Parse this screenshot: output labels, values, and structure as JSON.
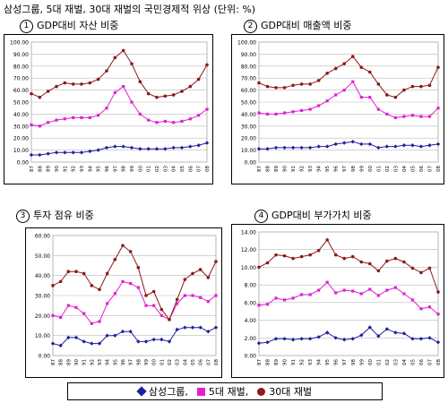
{
  "title": "삼성그룹, 5대 재벌, 30대 재벌의 국민경제적 위상 (단위: %)",
  "legend": {
    "items": [
      {
        "label": "삼성그룹,",
        "color": "#1f1f9e",
        "icon": "diamond-marker"
      },
      {
        "label": "5대 재벌,",
        "color": "#e020d0",
        "icon": "square-marker"
      },
      {
        "label": "30대 재벌",
        "color": "#8b1a1a",
        "icon": "circle-marker"
      }
    ]
  },
  "colors": {
    "samsung": "#1f1f9e",
    "top5": "#e020d0",
    "top30": "#8b1a1a",
    "grid": "#bbbbbb",
    "plot_bg": "#ffffff"
  },
  "chart_data": [
    {
      "type": "line",
      "title": "GDP대비 자산 비중",
      "number": "1",
      "x": [
        "87",
        "88",
        "89",
        "90",
        "91",
        "92",
        "93",
        "94",
        "95",
        "96",
        "97",
        "98",
        "99",
        "00",
        "01",
        "02",
        "03",
        "04",
        "05",
        "06",
        "07",
        "08"
      ],
      "yticks": [
        "0.00",
        "10.00",
        "20.00",
        "30.00",
        "40.00",
        "50.00",
        "60.00",
        "70.00",
        "80.00",
        "90.00",
        "100.00"
      ],
      "ylim": [
        0,
        100
      ],
      "series": [
        {
          "name": "삼성그룹",
          "values": [
            6,
            6,
            7,
            8,
            8,
            8,
            8,
            9,
            10,
            12,
            13,
            13,
            12,
            11,
            11,
            11,
            11,
            12,
            12,
            13,
            14,
            16
          ]
        },
        {
          "name": "5대 재벌",
          "values": [
            31,
            30,
            33,
            35,
            36,
            37,
            37,
            37,
            39,
            45,
            58,
            63,
            50,
            40,
            35,
            33,
            34,
            33,
            34,
            36,
            39,
            44
          ]
        },
        {
          "name": "30대 재벌",
          "values": [
            57,
            54,
            59,
            63,
            66,
            65,
            65,
            66,
            69,
            76,
            87,
            93,
            82,
            67,
            57,
            54,
            55,
            56,
            59,
            63,
            69,
            81
          ]
        }
      ]
    },
    {
      "type": "line",
      "title": "GDP대비 매출액 비중",
      "number": "2",
      "x": [
        "87",
        "88",
        "89",
        "90",
        "91",
        "92",
        "93",
        "94",
        "95",
        "96",
        "97",
        "98",
        "99",
        "00",
        "01",
        "02",
        "03",
        "04",
        "05",
        "06",
        "07",
        "08"
      ],
      "yticks": [
        "0.00",
        "10.00",
        "20.00",
        "30.00",
        "40.00",
        "50.00",
        "60.00",
        "70.00",
        "80.00",
        "90.00",
        "100.00"
      ],
      "ylim": [
        0,
        100
      ],
      "series": [
        {
          "name": "삼성그룹",
          "values": [
            11,
            11,
            12,
            12,
            12,
            12,
            12,
            13,
            13,
            15,
            16,
            17,
            15,
            15,
            12,
            13,
            13,
            14,
            14,
            13,
            14,
            15
          ]
        },
        {
          "name": "5대 재벌",
          "values": [
            41,
            40,
            40,
            41,
            42,
            43,
            44,
            47,
            51,
            56,
            60,
            67,
            54,
            54,
            44,
            40,
            37,
            38,
            39,
            38,
            38,
            45
          ]
        },
        {
          "name": "30대 재벌",
          "values": [
            66,
            63,
            62,
            62,
            64,
            65,
            65,
            68,
            74,
            78,
            82,
            88,
            79,
            75,
            65,
            56,
            54,
            60,
            63,
            63,
            64,
            79
          ]
        }
      ]
    },
    {
      "type": "line",
      "title": "투자 점유 비중",
      "number": "3",
      "x": [
        "87",
        "88",
        "89",
        "90",
        "91",
        "92",
        "93",
        "94",
        "95",
        "96",
        "97",
        "98",
        "99",
        "00",
        "01",
        "02",
        "03",
        "04",
        "05",
        "06",
        "07",
        "08"
      ],
      "yticks": [
        "0.00",
        "10.00",
        "20.00",
        "30.00",
        "40.00",
        "50.00",
        "60.00"
      ],
      "ylim": [
        0,
        60
      ],
      "series": [
        {
          "name": "삼성그룹",
          "values": [
            6,
            5,
            9,
            9,
            7,
            6,
            6,
            10,
            10,
            12,
            12,
            7,
            7,
            8,
            8,
            7,
            13,
            14,
            14,
            14,
            12,
            14
          ]
        },
        {
          "name": "5대 재벌",
          "values": [
            20,
            19,
            25,
            24,
            21,
            16,
            17,
            26,
            31,
            37,
            36,
            34,
            25,
            25,
            20,
            18,
            26,
            30,
            30,
            29,
            27,
            30
          ]
        },
        {
          "name": "30대 재벌",
          "values": [
            35,
            37,
            42,
            42,
            41,
            35,
            33,
            41,
            48,
            55,
            52,
            44,
            30,
            32,
            23,
            18,
            28,
            38,
            41,
            43,
            39,
            47
          ]
        }
      ]
    },
    {
      "type": "line",
      "title": "GDP대비 부가가치 비중",
      "number": "4",
      "x": [
        "87",
        "88",
        "89",
        "90",
        "91",
        "92",
        "93",
        "94",
        "95",
        "96",
        "97",
        "98",
        "99",
        "00",
        "01",
        "02",
        "03",
        "04",
        "05",
        "06",
        "07",
        "08"
      ],
      "yticks": [
        "0.00",
        "2.00",
        "4.00",
        "6.00",
        "8.00",
        "10.00",
        "12.00",
        "14.00"
      ],
      "ylim": [
        0,
        14
      ],
      "series": [
        {
          "name": "삼성그룹",
          "values": [
            1.4,
            1.5,
            1.9,
            1.9,
            1.8,
            1.9,
            1.9,
            2.1,
            2.6,
            2.0,
            1.8,
            1.9,
            2.3,
            3.2,
            2.2,
            3.0,
            2.6,
            2.5,
            1.9,
            1.9,
            2.0,
            1.5
          ]
        },
        {
          "name": "5대 재벌",
          "values": [
            5.7,
            5.8,
            6.5,
            6.3,
            6.5,
            6.9,
            6.9,
            7.4,
            8.3,
            7.1,
            7.4,
            7.3,
            7.0,
            7.5,
            6.8,
            7.4,
            7.7,
            7.0,
            6.3,
            5.3,
            5.5,
            4.7
          ]
        },
        {
          "name": "30대 재벌",
          "values": [
            10.0,
            10.5,
            11.4,
            11.3,
            11.0,
            11.2,
            11.4,
            11.9,
            13.1,
            11.4,
            11.0,
            11.2,
            10.6,
            10.4,
            9.6,
            10.7,
            11.0,
            10.6,
            9.9,
            9.4,
            9.9,
            7.2
          ]
        }
      ]
    }
  ]
}
